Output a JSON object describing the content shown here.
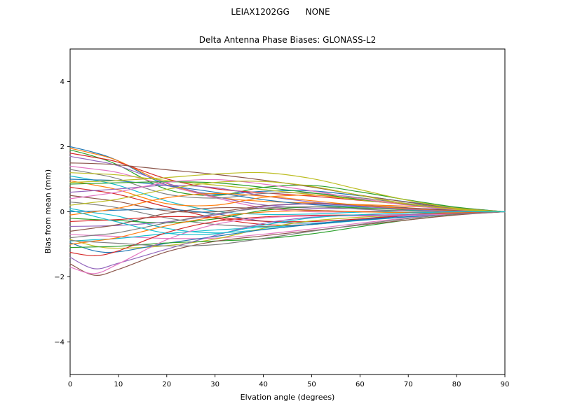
{
  "figure": {
    "suptitle": "LEIAX1202GG      NONE",
    "background": "#ffffff"
  },
  "chart_data": {
    "type": "line",
    "title": "Delta Antenna Phase Biases: GLONASS-L2",
    "xlabel": "Elvation angle (degrees)",
    "ylabel": "Bias from mean (mm)",
    "xlim": [
      0,
      90
    ],
    "ylim": [
      -5,
      5
    ],
    "xticks": [
      0,
      10,
      20,
      30,
      40,
      50,
      60,
      70,
      80,
      90
    ],
    "yticks": [
      -4,
      -2,
      0,
      2,
      4
    ],
    "grid": false,
    "legend": "none",
    "line_width": 1.2,
    "palette": [
      "#1f77b4",
      "#ff7f0e",
      "#2ca02c",
      "#d62728",
      "#9467bd",
      "#8c564b",
      "#e377c2",
      "#7f7f7f",
      "#bcbd22",
      "#17becf"
    ],
    "x": [
      0,
      5,
      10,
      20,
      30,
      40,
      50,
      60,
      70,
      80,
      90
    ],
    "series": [
      {
        "name": "line-01",
        "values": [
          2.0,
          1.82,
          1.56,
          0.82,
          0.54,
          0.63,
          0.64,
          0.49,
          0.3,
          0.13,
          0
        ]
      },
      {
        "name": "line-02",
        "values": [
          1.95,
          1.78,
          1.56,
          0.87,
          0.46,
          0.32,
          0.27,
          0.22,
          0.17,
          0.09,
          0
        ]
      },
      {
        "name": "line-03",
        "values": [
          1.9,
          1.7,
          1.43,
          0.69,
          0.5,
          0.75,
          0.81,
          0.61,
          0.36,
          0.14,
          0
        ]
      },
      {
        "name": "line-04",
        "values": [
          1.8,
          1.67,
          1.52,
          1.01,
          0.71,
          0.58,
          0.48,
          0.35,
          0.23,
          0.1,
          0
        ]
      },
      {
        "name": "line-05",
        "values": [
          1.7,
          1.57,
          1.41,
          0.88,
          0.47,
          0.21,
          0.11,
          0.1,
          0.1,
          0.07,
          0
        ]
      },
      {
        "name": "line-06",
        "values": [
          1.5,
          1.48,
          1.44,
          1.29,
          1.15,
          0.97,
          0.76,
          0.51,
          0.29,
          0.11,
          0
        ]
      },
      {
        "name": "line-07",
        "values": [
          1.4,
          1.31,
          1.2,
          0.81,
          0.43,
          0.12,
          0.0,
          0.01,
          0.05,
          0.04,
          0
        ]
      },
      {
        "name": "line-08",
        "values": [
          1.3,
          1.17,
          1.01,
          0.54,
          0.42,
          0.56,
          0.57,
          0.43,
          0.25,
          0.1,
          0
        ]
      },
      {
        "name": "line-09",
        "values": [
          1.2,
          1.17,
          1.13,
          0.96,
          0.82,
          0.68,
          0.53,
          0.36,
          0.21,
          0.08,
          0
        ]
      },
      {
        "name": "line-10",
        "values": [
          1.1,
          0.97,
          0.81,
          0.33,
          0.02,
          -0.08,
          -0.07,
          -0.01,
          0.03,
          0.03,
          0
        ]
      },
      {
        "name": "line-11",
        "values": [
          1.0,
          0.98,
          0.95,
          0.8,
          0.6,
          0.37,
          0.22,
          0.15,
          0.1,
          0.05,
          0
        ]
      },
      {
        "name": "line-12",
        "values": [
          0.95,
          0.82,
          0.67,
          0.25,
          0.2,
          0.44,
          0.51,
          0.39,
          0.22,
          0.08,
          0
        ]
      },
      {
        "name": "line-13",
        "values": [
          0.85,
          0.87,
          0.89,
          0.92,
          0.89,
          0.75,
          0.58,
          0.38,
          0.21,
          0.07,
          0
        ]
      },
      {
        "name": "line-14",
        "values": [
          0.75,
          0.65,
          0.53,
          0.15,
          -0.19,
          -0.39,
          -0.39,
          -0.24,
          -0.09,
          -0.01,
          0
        ]
      },
      {
        "name": "line-15",
        "values": [
          0.6,
          0.65,
          0.7,
          0.81,
          0.74,
          0.49,
          0.3,
          0.18,
          0.1,
          0.04,
          0
        ]
      },
      {
        "name": "line-16",
        "values": [
          0.5,
          0.41,
          0.31,
          0.03,
          0.0,
          0.18,
          0.25,
          0.2,
          0.12,
          0.04,
          0
        ]
      },
      {
        "name": "line-17",
        "values": [
          0.4,
          0.5,
          0.61,
          0.9,
          0.99,
          0.85,
          0.64,
          0.4,
          0.2,
          0.06,
          0
        ]
      },
      {
        "name": "line-18",
        "values": [
          0.3,
          0.22,
          0.12,
          -0.19,
          -0.39,
          -0.45,
          -0.39,
          -0.24,
          -0.11,
          -0.02,
          0
        ]
      },
      {
        "name": "line-19",
        "values": [
          0.2,
          0.29,
          0.39,
          0.69,
          0.9,
          0.93,
          0.78,
          0.5,
          0.24,
          0.07,
          0
        ]
      },
      {
        "name": "line-20",
        "values": [
          0.1,
          -0.03,
          -0.14,
          -0.51,
          -0.65,
          -0.54,
          -0.38,
          -0.22,
          -0.1,
          -0.02,
          0
        ]
      },
      {
        "name": "line-21",
        "values": [
          0.0,
          0.02,
          0.05,
          0.08,
          -0.06,
          -0.29,
          -0.35,
          -0.25,
          -0.12,
          -0.03,
          0
        ]
      },
      {
        "name": "line-22",
        "values": [
          -0.1,
          0.0,
          0.11,
          0.43,
          0.56,
          0.48,
          0.34,
          0.2,
          0.09,
          0.02,
          0
        ]
      },
      {
        "name": "line-23",
        "values": [
          -0.2,
          -0.24,
          -0.27,
          -0.34,
          -0.22,
          0.04,
          0.15,
          0.12,
          0.06,
          0.01,
          0
        ]
      },
      {
        "name": "line-24",
        "values": [
          -0.3,
          -0.27,
          -0.24,
          -0.15,
          -0.18,
          -0.29,
          -0.3,
          -0.22,
          -0.11,
          -0.04,
          0
        ]
      },
      {
        "name": "line-25",
        "values": [
          -0.45,
          -0.44,
          -0.42,
          -0.31,
          -0.1,
          0.16,
          0.24,
          0.17,
          0.07,
          0.01,
          0
        ]
      },
      {
        "name": "line-26",
        "values": [
          -0.6,
          -0.5,
          -0.39,
          -0.05,
          0.12,
          0.1,
          0.05,
          0.0,
          -0.02,
          -0.02,
          0
        ]
      },
      {
        "name": "line-27",
        "values": [
          -0.7,
          -0.73,
          -0.76,
          -0.82,
          -0.81,
          -0.69,
          -0.53,
          -0.35,
          -0.19,
          -0.06,
          0
        ]
      },
      {
        "name": "line-28",
        "values": [
          -0.8,
          -0.72,
          -0.64,
          -0.34,
          -0.07,
          0.11,
          0.15,
          0.08,
          0.02,
          -0.01,
          0
        ]
      },
      {
        "name": "line-29",
        "values": [
          -0.85,
          -1.05,
          -1.12,
          -1.04,
          -0.84,
          -0.51,
          -0.28,
          -0.17,
          -0.1,
          -0.05,
          0
        ]
      },
      {
        "name": "line-30",
        "values": [
          -0.9,
          -0.86,
          -0.82,
          -0.67,
          -0.56,
          -0.48,
          -0.39,
          -0.27,
          -0.16,
          -0.06,
          0
        ]
      },
      {
        "name": "line-31",
        "values": [
          -0.95,
          -1.2,
          -1.23,
          -0.97,
          -0.76,
          -0.55,
          -0.39,
          -0.26,
          -0.15,
          -0.06,
          0
        ]
      },
      {
        "name": "line-32",
        "values": [
          -1.0,
          -0.9,
          -0.79,
          -0.43,
          -0.16,
          -0.01,
          0.03,
          0.0,
          -0.03,
          -0.03,
          0
        ]
      },
      {
        "name": "line-33",
        "values": [
          -1.1,
          -1.08,
          -1.06,
          -0.96,
          -0.9,
          -0.83,
          -0.68,
          -0.46,
          -0.25,
          -0.09,
          0
        ]
      },
      {
        "name": "line-34",
        "values": [
          -1.25,
          -1.35,
          -1.2,
          -0.64,
          -0.3,
          -0.16,
          -0.11,
          -0.1,
          -0.09,
          -0.05,
          0
        ]
      },
      {
        "name": "line-35",
        "values": [
          -1.4,
          -1.75,
          -1.58,
          -1.15,
          -0.73,
          -0.36,
          -0.17,
          -0.11,
          -0.09,
          -0.06,
          0
        ]
      },
      {
        "name": "line-36",
        "values": [
          -1.6,
          -1.95,
          -1.77,
          -1.23,
          -0.91,
          -0.74,
          -0.58,
          -0.41,
          -0.25,
          -0.1,
          0
        ]
      },
      {
        "name": "line-37",
        "values": [
          -1.7,
          -1.9,
          -1.6,
          -0.86,
          -0.39,
          -0.19,
          -0.13,
          -0.13,
          -0.11,
          -0.07,
          0
        ]
      },
      {
        "name": "line-38",
        "values": [
          -0.88,
          -0.93,
          -0.97,
          -1.05,
          -1.01,
          -0.82,
          -0.6,
          -0.39,
          -0.21,
          -0.07,
          0
        ]
      },
      {
        "name": "line-39",
        "values": [
          0.9,
          0.93,
          0.96,
          1.05,
          1.16,
          1.2,
          1.02,
          0.68,
          0.35,
          0.11,
          0
        ]
      },
      {
        "name": "line-40",
        "values": [
          0.05,
          -0.14,
          -0.32,
          -0.66,
          -0.68,
          -0.41,
          -0.19,
          -0.09,
          -0.04,
          0.0,
          0
        ]
      }
    ]
  }
}
